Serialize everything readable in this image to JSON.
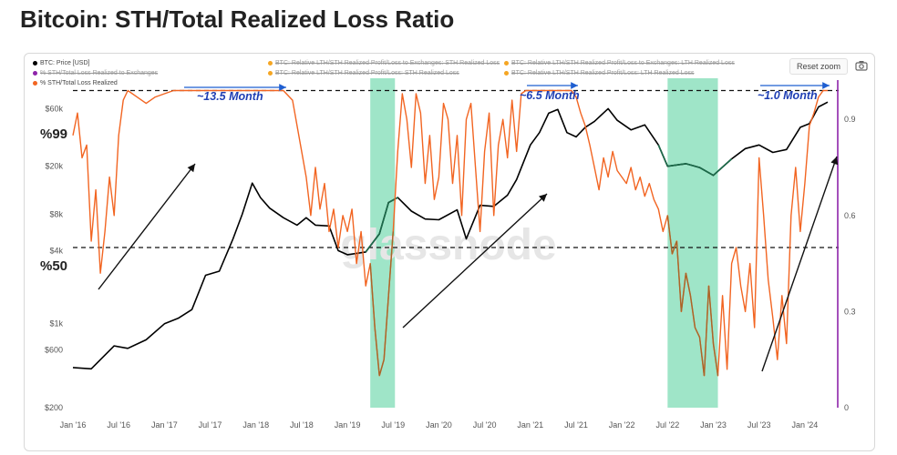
{
  "title": "Bitcoin: STH/Total Realized Loss Ratio",
  "reset_zoom": "Reset zoom",
  "watermark": "glassnode",
  "legend": [
    {
      "label": "BTC: Price [USD]",
      "color": "#000000",
      "active": true
    },
    {
      "label": "% STH/Total Loss Realized to Exchanges",
      "color": "#8e24aa",
      "active": false
    },
    {
      "label": "% STH/Total Loss Realized",
      "color": "#f26522",
      "active": true
    },
    {
      "label": "BTC: Relative LTH/STH Realized Profit/Loss to Exchanges: STH Realized Loss",
      "color": "#f5a623",
      "active": false
    },
    {
      "label": "BTC: Relative LTH/STH Realized Profit/Loss: STH Realized Loss",
      "color": "#f5a623",
      "active": false
    },
    {
      "label": "BTC: Relative LTH/STH Realized Profit/Loss to Exchanges: LTH Realized Loss",
      "color": "#f5a623",
      "active": false
    },
    {
      "label": "BTC: Relative LTH/STH Realized Profit/Loss: LTH Realized Loss",
      "color": "#f5a623",
      "active": false
    }
  ],
  "annotations": {
    "level_99": "%99",
    "level_50": "%50",
    "cycle_1": "~13.5 Month",
    "cycle_2": "~6.5 Month",
    "cycle_3": "~1.0 Month"
  },
  "chart_data": {
    "type": "line",
    "x_ticks": [
      "Jan '16",
      "Jul '16",
      "Jan '17",
      "Jul '17",
      "Jan '18",
      "Jul '18",
      "Jan '19",
      "Jul '19",
      "Jan '20",
      "Jul '20",
      "Jan '21",
      "Jul '21",
      "Jan '22",
      "Jul '22",
      "Jan '23",
      "Jul '23",
      "Jan '24"
    ],
    "y_left_scale": "log",
    "y_left_ticks": [
      "$200",
      "$600",
      "$1k",
      "$4k",
      "$8k",
      "$20k",
      "$60k"
    ],
    "y_left_range": [
      200,
      90000
    ],
    "y_right_ticks": [
      "0",
      "0.3",
      "0.6",
      "0.9"
    ],
    "y_right_range": [
      0,
      1.0
    ],
    "thresholds": [
      0.99,
      0.5
    ],
    "series": [
      {
        "name": "BTC: Price [USD]",
        "color": "#000000",
        "axis": "left",
        "x": [
          2016.0,
          2016.2,
          2016.45,
          2016.6,
          2016.8,
          2017.0,
          2017.15,
          2017.3,
          2017.45,
          2017.6,
          2017.75,
          2017.85,
          2017.96,
          2018.05,
          2018.15,
          2018.3,
          2018.45,
          2018.55,
          2018.65,
          2018.8,
          2018.9,
          2019.0,
          2019.2,
          2019.35,
          2019.45,
          2019.55,
          2019.7,
          2019.85,
          2020.0,
          2020.2,
          2020.3,
          2020.45,
          2020.6,
          2020.75,
          2020.85,
          2021.0,
          2021.1,
          2021.2,
          2021.3,
          2021.4,
          2021.5,
          2021.6,
          2021.7,
          2021.85,
          2021.95,
          2022.1,
          2022.25,
          2022.4,
          2022.5,
          2022.7,
          2022.85,
          2023.0,
          2023.2,
          2023.35,
          2023.5,
          2023.65,
          2023.8,
          2023.95,
          2024.05,
          2024.15,
          2024.25
        ],
        "values": [
          430,
          420,
          650,
          620,
          730,
          990,
          1100,
          1300,
          2500,
          2700,
          5000,
          8000,
          14500,
          11000,
          9000,
          7500,
          6500,
          7500,
          6500,
          6400,
          4000,
          3700,
          3900,
          5500,
          10000,
          11000,
          8500,
          7300,
          7200,
          8700,
          5000,
          9500,
          9300,
          11500,
          15500,
          30000,
          38000,
          55000,
          59000,
          38000,
          35000,
          42000,
          47000,
          60000,
          48000,
          40000,
          44000,
          30000,
          20000,
          21000,
          19500,
          16800,
          23000,
          28000,
          30000,
          26000,
          27500,
          42000,
          45000,
          62000,
          68000
        ]
      },
      {
        "name": "% STH/Total Loss Realized",
        "color": "#f26522",
        "axis": "right",
        "x": [
          2016.0,
          2016.05,
          2016.1,
          2016.15,
          2016.2,
          2016.25,
          2016.3,
          2016.35,
          2016.4,
          2016.45,
          2016.5,
          2016.55,
          2016.6,
          2016.7,
          2016.8,
          2016.9,
          2017.0,
          2017.1,
          2017.2,
          2017.4,
          2017.6,
          2017.8,
          2018.0,
          2018.2,
          2018.3,
          2018.4,
          2018.45,
          2018.5,
          2018.55,
          2018.6,
          2018.65,
          2018.7,
          2018.75,
          2018.8,
          2018.85,
          2018.9,
          2018.95,
          2019.0,
          2019.05,
          2019.1,
          2019.15,
          2019.2,
          2019.25,
          2019.3,
          2019.35,
          2019.4,
          2019.45,
          2019.5,
          2019.55,
          2019.6,
          2019.65,
          2019.7,
          2019.75,
          2019.8,
          2019.85,
          2019.9,
          2019.95,
          2020.0,
          2020.05,
          2020.1,
          2020.15,
          2020.2,
          2020.25,
          2020.3,
          2020.35,
          2020.4,
          2020.45,
          2020.5,
          2020.55,
          2020.6,
          2020.65,
          2020.7,
          2020.75,
          2020.8,
          2020.85,
          2020.9,
          2020.95,
          2021.0,
          2021.2,
          2021.35,
          2021.45,
          2021.5,
          2021.55,
          2021.6,
          2021.65,
          2021.7,
          2021.75,
          2021.8,
          2021.85,
          2021.9,
          2021.95,
          2022.0,
          2022.05,
          2022.1,
          2022.15,
          2022.2,
          2022.25,
          2022.3,
          2022.35,
          2022.4,
          2022.45,
          2022.5,
          2022.55,
          2022.6,
          2022.65,
          2022.7,
          2022.75,
          2022.8,
          2022.85,
          2022.9,
          2022.95,
          2023.0,
          2023.05,
          2023.1,
          2023.15,
          2023.2,
          2023.25,
          2023.3,
          2023.35,
          2023.4,
          2023.45,
          2023.5,
          2023.55,
          2023.6,
          2023.65,
          2023.7,
          2023.75,
          2023.8,
          2023.85,
          2023.9,
          2023.95,
          2024.0,
          2024.05,
          2024.1,
          2024.15,
          2024.2,
          2024.25
        ],
        "values": [
          0.85,
          0.92,
          0.78,
          0.82,
          0.52,
          0.68,
          0.42,
          0.55,
          0.72,
          0.6,
          0.85,
          0.96,
          0.99,
          0.97,
          0.95,
          0.97,
          0.98,
          0.99,
          0.99,
          0.99,
          0.99,
          0.99,
          0.99,
          0.99,
          0.99,
          0.96,
          0.88,
          0.8,
          0.72,
          0.6,
          0.75,
          0.62,
          0.7,
          0.55,
          0.62,
          0.5,
          0.6,
          0.55,
          0.62,
          0.45,
          0.55,
          0.38,
          0.45,
          0.25,
          0.1,
          0.15,
          0.35,
          0.55,
          0.8,
          0.98,
          0.9,
          0.75,
          0.98,
          0.92,
          0.7,
          0.85,
          0.65,
          0.72,
          0.95,
          0.9,
          0.7,
          0.85,
          0.6,
          0.9,
          0.95,
          0.75,
          0.55,
          0.8,
          0.92,
          0.6,
          0.82,
          0.9,
          0.78,
          0.96,
          0.8,
          0.98,
          0.99,
          0.99,
          0.99,
          0.99,
          0.99,
          0.97,
          0.92,
          0.88,
          0.82,
          0.75,
          0.68,
          0.78,
          0.72,
          0.8,
          0.74,
          0.72,
          0.7,
          0.75,
          0.68,
          0.72,
          0.66,
          0.7,
          0.65,
          0.62,
          0.55,
          0.6,
          0.48,
          0.52,
          0.3,
          0.42,
          0.35,
          0.25,
          0.22,
          0.1,
          0.38,
          0.2,
          0.1,
          0.35,
          0.12,
          0.45,
          0.5,
          0.38,
          0.3,
          0.45,
          0.25,
          0.78,
          0.6,
          0.4,
          0.28,
          0.15,
          0.35,
          0.2,
          0.6,
          0.75,
          0.55,
          0.7,
          0.88,
          0.92,
          0.97,
          0.99,
          0.99
        ]
      }
    ]
  }
}
